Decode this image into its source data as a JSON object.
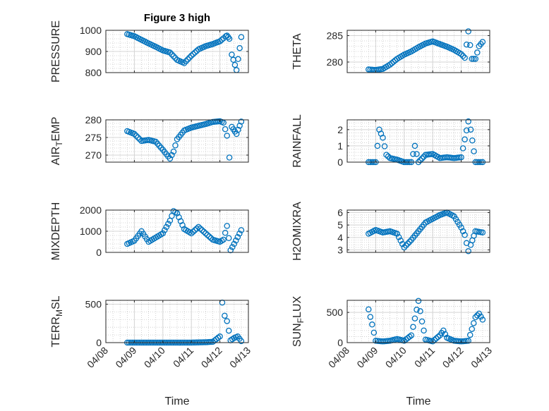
{
  "figure": {
    "title": "Figure 3 high",
    "marker_color": "#0072bd",
    "x_tick_labels": [
      "04/08",
      "04/09",
      "04/10",
      "04/11",
      "04/12",
      "04/13"
    ]
  },
  "chart_data": [
    {
      "type": "scatter",
      "ylabel": "PRESSURE",
      "xlabel": "",
      "xlim": [
        "04/08",
        "04/13"
      ],
      "ylim": [
        800,
        1000
      ],
      "yticks": [
        800,
        900,
        1000
      ],
      "grid": true,
      "x": [
        "04/08 18:00",
        "04/09 00:00",
        "04/09 06:00",
        "04/09 12:00",
        "04/09 18:00",
        "04/10 00:00",
        "04/10 06:00",
        "04/10 12:00",
        "04/10 18:00",
        "04/11 00:00",
        "04/11 06:00",
        "04/11 12:00",
        "04/11 18:00",
        "04/12 00:00",
        "04/12 03:00",
        "04/12 05:00",
        "04/12 06:00",
        "04/12 07:00",
        "04/12 08:00",
        "04/12 10:00",
        "04/12 14:00",
        "04/12 18:00"
      ],
      "y": [
        982,
        972,
        955,
        938,
        922,
        905,
        895,
        860,
        845,
        880,
        910,
        925,
        935,
        948,
        962,
        972,
        975,
        968,
        960,
        885,
        812,
        968
      ]
    },
    {
      "type": "scatter",
      "ylabel": "THETA",
      "xlabel": "",
      "xlim": [
        "04/08",
        "04/13"
      ],
      "ylim": [
        278,
        286
      ],
      "yticks": [
        280,
        285
      ],
      "grid": true,
      "x": [
        "04/08 18:00",
        "04/09 00:00",
        "04/09 06:00",
        "04/09 12:00",
        "04/09 18:00",
        "04/10 00:00",
        "04/10 06:00",
        "04/10 12:00",
        "04/10 18:00",
        "04/11 00:00",
        "04/11 06:00",
        "04/11 12:00",
        "04/11 18:00",
        "04/12 00:00",
        "04/12 03:00",
        "04/12 06:00",
        "04/12 09:00",
        "04/12 12:00",
        "04/12 15:00",
        "04/12 18:00"
      ],
      "y": [
        278.6,
        278.5,
        278.7,
        279.5,
        280.6,
        281.4,
        282.0,
        282.8,
        283.5,
        283.9,
        283.4,
        282.9,
        282.3,
        281.5,
        280.8,
        285.8,
        280.6,
        280.6,
        283.0,
        283.8
      ]
    },
    {
      "type": "scatter",
      "ylabel": "AIR_TEMP",
      "xlabel": "",
      "xlim": [
        "04/08",
        "04/13"
      ],
      "ylim": [
        268,
        280
      ],
      "yticks": [
        270,
        275,
        280
      ],
      "grid": true,
      "x": [
        "04/08 18:00",
        "04/09 00:00",
        "04/09 06:00",
        "04/09 12:00",
        "04/09 18:00",
        "04/10 00:00",
        "04/10 06:00",
        "04/10 09:00",
        "04/10 12:00",
        "04/10 18:00",
        "04/11 00:00",
        "04/11 06:00",
        "04/11 12:00",
        "04/11 18:00",
        "04/12 00:00",
        "04/12 03:00",
        "04/12 06:00",
        "04/12 08:00",
        "04/12 10:00",
        "04/12 14:00",
        "04/12 18:00"
      ],
      "y": [
        276.8,
        276.0,
        274.0,
        274.3,
        273.8,
        271.5,
        269.0,
        271.0,
        274.5,
        277.0,
        277.8,
        278.3,
        278.8,
        279.4,
        279.6,
        279.2,
        275.5,
        269.3,
        278.0,
        276.0,
        279.5
      ]
    },
    {
      "type": "scatter",
      "ylabel": "RAINFALL",
      "xlabel": "",
      "xlim": [
        "04/08",
        "04/13"
      ],
      "ylim": [
        0,
        2.6
      ],
      "yticks": [
        0,
        1,
        2
      ],
      "grid": true,
      "x": [
        "04/08 18:00",
        "04/09 00:00",
        "04/09 03:00",
        "04/09 06:00",
        "04/09 09:00",
        "04/09 12:00",
        "04/09 18:00",
        "04/10 00:00",
        "04/10 06:00",
        "04/10 09:00",
        "04/10 12:00",
        "04/10 18:00",
        "04/11 00:00",
        "04/11 06:00",
        "04/11 12:00",
        "04/11 18:00",
        "04/12 00:00",
        "04/12 06:00",
        "04/12 08:00",
        "04/12 12:00",
        "04/12 18:00"
      ],
      "y": [
        0,
        0,
        2.0,
        1.5,
        0.45,
        0.25,
        0.15,
        0,
        0,
        1.0,
        0,
        0.45,
        0.5,
        0.25,
        0.3,
        0.25,
        0.3,
        2.5,
        2.0,
        0,
        0
      ]
    },
    {
      "type": "scatter",
      "ylabel": "MIXDEPTH",
      "xlabel": "",
      "xlim": [
        "04/08",
        "04/13"
      ],
      "ylim": [
        0,
        2000
      ],
      "yticks": [
        0,
        1000,
        2000
      ],
      "grid": true,
      "x": [
        "04/08 18:00",
        "04/09 00:00",
        "04/09 06:00",
        "04/09 12:00",
        "04/09 18:00",
        "04/10 00:00",
        "04/10 06:00",
        "04/10 09:00",
        "04/10 12:00",
        "04/10 18:00",
        "04/11 00:00",
        "04/11 06:00",
        "04/11 12:00",
        "04/11 18:00",
        "04/12 00:00",
        "04/12 03:00",
        "04/12 06:00",
        "04/12 09:00",
        "04/12 12:00",
        "04/12 18:00"
      ],
      "y": [
        400,
        550,
        1000,
        500,
        700,
        900,
        1500,
        1950,
        1850,
        1100,
        900,
        1200,
        900,
        600,
        500,
        600,
        1250,
        100,
        400,
        1050
      ]
    },
    {
      "type": "scatter",
      "ylabel": "H2OMIXRA",
      "xlabel": "",
      "xlim": [
        "04/08",
        "04/13"
      ],
      "ylim": [
        2.8,
        6.2
      ],
      "yticks": [
        3,
        4,
        5,
        6
      ],
      "grid": true,
      "x": [
        "04/08 18:00",
        "04/09 00:00",
        "04/09 06:00",
        "04/09 12:00",
        "04/09 18:00",
        "04/10 00:00",
        "04/10 06:00",
        "04/10 12:00",
        "04/10 18:00",
        "04/11 00:00",
        "04/11 06:00",
        "04/11 12:00",
        "04/11 18:00",
        "04/12 00:00",
        "04/12 03:00",
        "04/12 06:00",
        "04/12 08:00",
        "04/12 12:00",
        "04/12 18:00"
      ],
      "y": [
        4.3,
        4.6,
        4.4,
        4.5,
        4.3,
        3.2,
        3.8,
        4.5,
        5.2,
        5.5,
        5.8,
        6.0,
        5.7,
        4.8,
        4.2,
        2.9,
        3.4,
        4.5,
        4.4
      ]
    },
    {
      "type": "scatter",
      "ylabel": "TERR_MSL",
      "xlabel": "Time",
      "xlim": [
        "04/08",
        "04/13"
      ],
      "ylim": [
        0,
        550
      ],
      "yticks": [
        0,
        500
      ],
      "grid": true,
      "x": [
        "04/08 18:00",
        "04/09 00:00",
        "04/09 12:00",
        "04/10 00:00",
        "04/10 12:00",
        "04/11 00:00",
        "04/11 12:00",
        "04/11 18:00",
        "04/12 00:00",
        "04/12 02:00",
        "04/12 04:00",
        "04/12 06:00",
        "04/12 09:00",
        "04/12 12:00",
        "04/12 15:00",
        "04/12 18:00"
      ],
      "y": [
        0,
        0,
        0,
        0,
        0,
        0,
        5,
        10,
        80,
        520,
        350,
        280,
        30,
        60,
        80,
        20
      ]
    },
    {
      "type": "scatter",
      "ylabel": "SUN_FLUX",
      "xlabel": "Time",
      "xlim": [
        "04/08",
        "04/13"
      ],
      "ylim": [
        0,
        700
      ],
      "yticks": [
        0,
        500
      ],
      "grid": true,
      "x": [
        "04/08 18:00",
        "04/08 21:00",
        "04/09 00:00",
        "04/09 06:00",
        "04/09 12:00",
        "04/09 18:00",
        "04/10 00:00",
        "04/10 06:00",
        "04/10 09:00",
        "04/10 12:00",
        "04/10 15:00",
        "04/10 18:00",
        "04/11 00:00",
        "04/11 06:00",
        "04/11 09:00",
        "04/11 12:00",
        "04/11 18:00",
        "04/12 00:00",
        "04/12 06:00",
        "04/12 12:00",
        "04/12 15:00",
        "04/12 18:00"
      ],
      "y": [
        550,
        300,
        30,
        20,
        30,
        60,
        30,
        120,
        400,
        690,
        350,
        50,
        20,
        120,
        200,
        80,
        30,
        20,
        30,
        420,
        480,
        380
      ]
    }
  ]
}
